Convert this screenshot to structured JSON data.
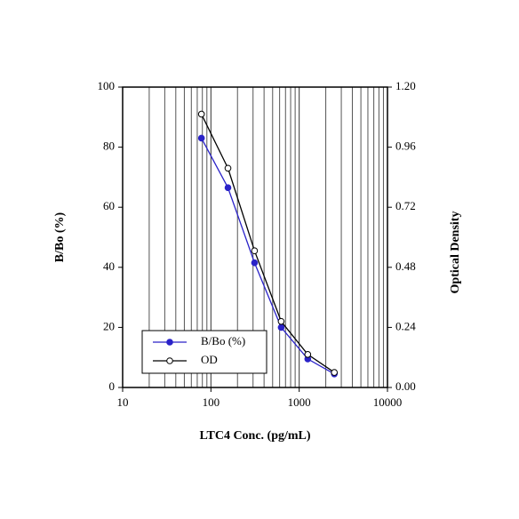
{
  "chart_data": {
    "type": "line",
    "x_label": "LTC4 Conc. (pg/mL)",
    "y_label": "B/Bo (%)",
    "y2_label": "Optical Density",
    "x": [
      78.1,
      156,
      312,
      625,
      1250,
      2500
    ],
    "xscale": "log",
    "xlim": [
      10,
      10000
    ],
    "xticks": [
      10,
      100,
      1000,
      10000
    ],
    "ylim": [
      0,
      100
    ],
    "yticks": [
      0,
      20,
      40,
      60,
      80,
      100
    ],
    "y2lim": [
      0,
      1.2
    ],
    "y2ticks": [
      {
        "value": 0,
        "label": "0.00"
      },
      {
        "value": 0.24,
        "label": "0.24"
      },
      {
        "value": 0.48,
        "label": "0.48"
      },
      {
        "value": 0.72,
        "label": "0.72"
      },
      {
        "value": 0.96,
        "label": "0.96"
      },
      {
        "value": 1.2,
        "label": "1.20"
      }
    ],
    "grid": true,
    "legend": "lower left",
    "series": [
      {
        "name": "B/Bo (%)",
        "color": "#2a22c8",
        "filled": true,
        "values": [
          83,
          66.5,
          41.5,
          20,
          9.5,
          4.5
        ]
      },
      {
        "name": "OD",
        "color": "#000000",
        "filled": false,
        "axis": "y2",
        "values": [
          1.092,
          0.876,
          0.546,
          0.264,
          0.132,
          0.06
        ]
      }
    ]
  }
}
